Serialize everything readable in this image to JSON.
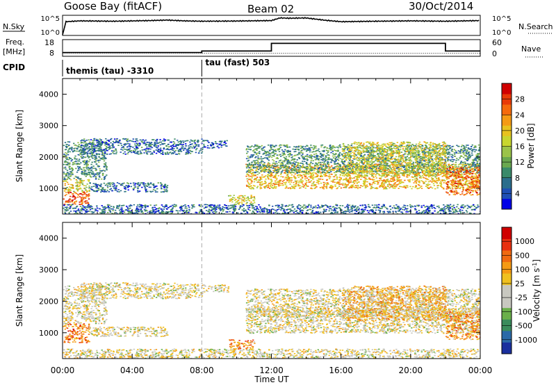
{
  "header": {
    "station": "Goose Bay (fitACF)",
    "beam": "Beam 02",
    "date": "30/Oct/2014"
  },
  "side_labels": {
    "n_sky": "N.Sky",
    "freq_line1": "Freq.",
    "freq_line2": "[MHz]",
    "cpid": "CPID",
    "n_search": "N.Search",
    "nave": "Nave",
    "sky_tick_top": "10^5",
    "sky_tick_bottom": "10^0",
    "freq_tick_top": "18",
    "freq_tick_bottom": "8",
    "nave_tick_top": "60",
    "nave_tick_bottom": "0"
  },
  "cpid_segments": [
    {
      "label": "themis (tau) -3310",
      "start_hour": 0,
      "end_hour": 8
    },
    {
      "label": "tau (fast) 503",
      "start_hour": 8,
      "end_hour": 24
    }
  ],
  "x_axis": {
    "label": "Time UT",
    "ticks": [
      "00:00",
      "04:00",
      "08:00",
      "12:00",
      "16:00",
      "20:00",
      "00:00"
    ],
    "range_hours": [
      0,
      24
    ]
  },
  "chart_data": [
    {
      "type": "line",
      "name": "n_sky_search",
      "y_scale": "log",
      "ylim": [
        1,
        100000
      ],
      "x_hours": [
        0,
        0.2,
        1,
        3,
        5,
        6,
        7,
        8,
        10,
        12,
        12.5,
        13,
        14,
        15,
        16,
        18,
        20,
        22,
        24
      ],
      "values": [
        1,
        3000,
        5000,
        4000,
        6000,
        8000,
        5000,
        4000,
        4500,
        6000,
        30000,
        25000,
        30000,
        8000,
        3000,
        4000,
        5000,
        4000,
        6000
      ]
    },
    {
      "type": "line",
      "name": "freq_nave",
      "freq_ylim": [
        8,
        18
      ],
      "nave_ylim": [
        0,
        60
      ],
      "freq_x_hours": [
        0,
        8,
        8,
        12,
        12,
        22,
        22,
        24
      ],
      "freq_values": [
        10,
        10,
        11,
        11,
        16,
        16,
        11,
        11
      ],
      "nave_x_hours": [
        0,
        8,
        8,
        24
      ],
      "nave_values": [
        10,
        10,
        9,
        9
      ]
    },
    {
      "type": "heatmap",
      "title": "",
      "xlabel": "Time UT",
      "ylabel": "Slant Range [km]",
      "ylim": [
        180,
        4500
      ],
      "yticks": [
        1000,
        2000,
        3000,
        4000
      ],
      "colorbar": {
        "label": "Power [dB]",
        "ticks": [
          "4",
          "8",
          "12",
          "16",
          "20",
          "24",
          "28"
        ],
        "colors": [
          "#0000e6",
          "#1f4fb4",
          "#2b6e8c",
          "#3a8a6a",
          "#6aa84f",
          "#9bc34a",
          "#c8d62f",
          "#e8c21e",
          "#f59a14",
          "#f56a0c",
          "#e83a08",
          "#d00000"
        ]
      },
      "regions": [
        {
          "t": [
            0,
            2.5
          ],
          "r": [
            1300,
            2500
          ],
          "level": 0.3
        },
        {
          "t": [
            1,
            8
          ],
          "r": [
            2100,
            2600
          ],
          "level": 0.2
        },
        {
          "t": [
            0,
            1.5
          ],
          "r": [
            500,
            900
          ],
          "level": 0.85
        },
        {
          "t": [
            0,
            1.5
          ],
          "r": [
            900,
            1300
          ],
          "level": 0.55
        },
        {
          "t": [
            1.5,
            6
          ],
          "r": [
            900,
            1200
          ],
          "level": 0.2
        },
        {
          "t": [
            8,
            9.5
          ],
          "r": [
            2300,
            2550
          ],
          "level": 0.15
        },
        {
          "t": [
            9.5,
            11
          ],
          "r": [
            500,
            800
          ],
          "level": 0.55
        },
        {
          "t": [
            10.5,
            24
          ],
          "r": [
            1000,
            1800
          ],
          "level": 0.65
        },
        {
          "t": [
            10.5,
            24
          ],
          "r": [
            1500,
            2400
          ],
          "level": 0.3
        },
        {
          "t": [
            16,
            22
          ],
          "r": [
            1400,
            2500
          ],
          "level": 0.55
        },
        {
          "t": [
            22,
            24
          ],
          "r": [
            800,
            1700
          ],
          "level": 0.8
        },
        {
          "t": [
            0,
            24
          ],
          "r": [
            200,
            500
          ],
          "level": 0.2
        }
      ]
    },
    {
      "type": "heatmap",
      "title": "",
      "xlabel": "Time UT",
      "ylabel": "Slant Range [km]",
      "ylim": [
        180,
        4500
      ],
      "yticks": [
        1000,
        2000,
        3000,
        4000
      ],
      "colorbar": {
        "label": "Velocity [m s^-1]",
        "ticks": [
          "1000",
          "500",
          "100",
          "25",
          "-25",
          "-100",
          "-500",
          "-1000"
        ],
        "colors": [
          "#1a2f9e",
          "#2b6aa8",
          "#3a8c5c",
          "#6ab04a",
          "#c8c8c0",
          "#c8c8c0",
          "#f0c020",
          "#f59a14",
          "#f06a10",
          "#e83010",
          "#d00000"
        ]
      },
      "regions": [
        {
          "t": [
            0,
            2.5
          ],
          "r": [
            1300,
            2500
          ],
          "level": 0.5
        },
        {
          "t": [
            1,
            8
          ],
          "r": [
            2100,
            2600
          ],
          "level": 0.5
        },
        {
          "t": [
            0,
            1.5
          ],
          "r": [
            700,
            1300
          ],
          "level": 0.75
        },
        {
          "t": [
            1.5,
            6
          ],
          "r": [
            900,
            1200
          ],
          "level": 0.5
        },
        {
          "t": [
            8,
            9.5
          ],
          "r": [
            2300,
            2550
          ],
          "level": 0.5
        },
        {
          "t": [
            9.5,
            11
          ],
          "r": [
            500,
            800
          ],
          "level": 0.7
        },
        {
          "t": [
            10.5,
            24
          ],
          "r": [
            1000,
            1800
          ],
          "level": 0.5
        },
        {
          "t": [
            10.5,
            24
          ],
          "r": [
            1500,
            2400
          ],
          "level": 0.5
        },
        {
          "t": [
            16,
            22
          ],
          "r": [
            1400,
            2500
          ],
          "level": 0.62
        },
        {
          "t": [
            22,
            24
          ],
          "r": [
            800,
            1700
          ],
          "level": 0.7
        },
        {
          "t": [
            0,
            24
          ],
          "r": [
            200,
            500
          ],
          "level": 0.5
        }
      ]
    }
  ]
}
